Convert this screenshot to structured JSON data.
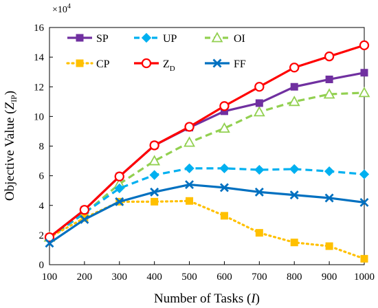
{
  "chart_data": {
    "type": "line",
    "title": "",
    "xlabel_main": "Number of Tasks (",
    "xlabel_var": "I",
    "xlabel_close": ")",
    "ylabel_main": "Objective Value (",
    "ylabel_var": "Z",
    "ylabel_sub": "IP",
    "ylabel_close": ")",
    "y_multiplier_base": "×10",
    "y_multiplier_exp": "4",
    "x": [
      100,
      200,
      300,
      400,
      500,
      600,
      700,
      800,
      900,
      1000
    ],
    "xlim": [
      100,
      1000
    ],
    "ylim": [
      0,
      16
    ],
    "y_ticks": [
      0,
      2,
      4,
      6,
      8,
      10,
      12,
      14,
      16
    ],
    "grid": false,
    "legend_placement": "top-left, inside plot, 3 columns",
    "series": [
      {
        "name": "SP",
        "name_sub": "",
        "color": "#7030A0",
        "marker": "square",
        "line": "solid",
        "values": [
          1.85,
          3.7,
          5.95,
          8.05,
          9.25,
          10.35,
          10.9,
          12.0,
          12.5,
          12.95
        ]
      },
      {
        "name": "UP",
        "name_sub": "",
        "color": "#00B0F0",
        "marker": "diamond",
        "line": "dashed",
        "values": [
          1.8,
          3.5,
          5.15,
          6.05,
          6.5,
          6.5,
          6.4,
          6.45,
          6.3,
          6.1
        ]
      },
      {
        "name": "OI",
        "name_sub": "",
        "color": "#92D050",
        "marker": "triangle",
        "line": "dashed",
        "values": [
          1.85,
          3.45,
          5.45,
          7.0,
          8.25,
          9.2,
          10.3,
          11.0,
          11.5,
          11.6
        ]
      },
      {
        "name": "CP",
        "name_sub": "",
        "color": "#FFC000",
        "marker": "square",
        "line": "dotted",
        "values": [
          1.85,
          3.15,
          4.25,
          4.25,
          4.3,
          3.3,
          2.15,
          1.5,
          1.25,
          0.4
        ]
      },
      {
        "name": "Z",
        "name_sub": "D",
        "color": "#FF0000",
        "marker": "circle",
        "line": "solid",
        "values": [
          1.85,
          3.7,
          5.95,
          8.05,
          9.3,
          10.7,
          12.0,
          13.3,
          14.05,
          14.8
        ]
      },
      {
        "name": "FF",
        "name_sub": "",
        "color": "#0070C0",
        "marker": "x",
        "line": "solid",
        "values": [
          1.45,
          3.05,
          4.25,
          4.9,
          5.4,
          5.2,
          4.9,
          4.7,
          4.5,
          4.2
        ]
      }
    ]
  }
}
